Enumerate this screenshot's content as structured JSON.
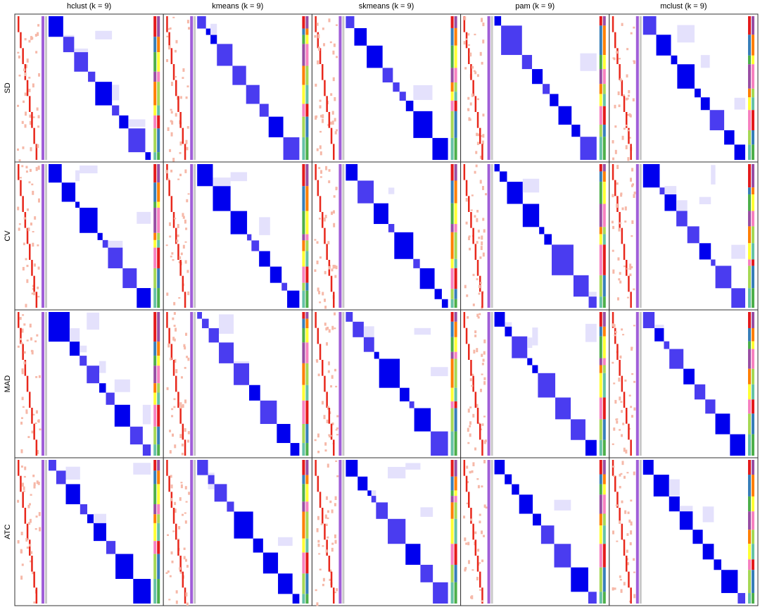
{
  "columns": [
    "hclust (k = 9)",
    "kmeans (k = 9)",
    "skmeans (k = 9)",
    "pam (k = 9)",
    "mclust (k = 9)"
  ],
  "rows": [
    "SD",
    "CV",
    "MAD",
    "ATC"
  ]
}
